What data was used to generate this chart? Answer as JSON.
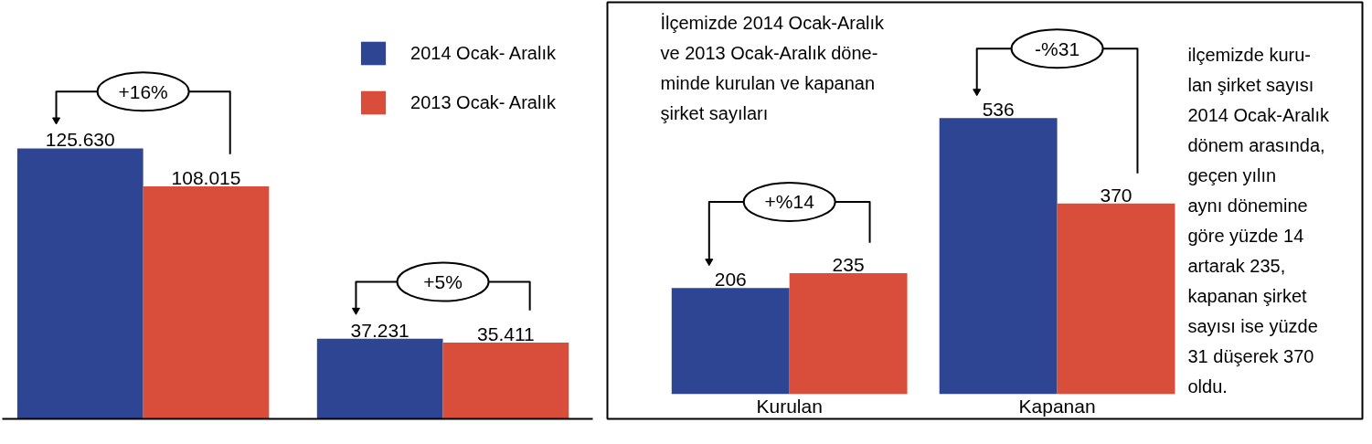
{
  "chart_data": [
    {
      "type": "bar",
      "categories": [
        null,
        null
      ],
      "series": [
        {
          "name": "2014 Ocak- Aralık",
          "color": "#2e4593",
          "values": [
            125630,
            37231
          ],
          "value_labels": [
            "125.630",
            "37.231"
          ]
        },
        {
          "name": "2013 Ocak- Aralık",
          "color": "#d84e3b",
          "values": [
            108015,
            35411
          ],
          "value_labels": [
            "108.015",
            "35.411"
          ]
        }
      ],
      "annotations": [
        "+16%",
        "+5%"
      ],
      "legend": "top right",
      "tick_labels": false
    },
    {
      "type": "bar",
      "categories": [
        "Kurulan",
        "Kapanan"
      ],
      "series": [
        {
          "color": "#2e4593",
          "values": [
            206,
            536
          ]
        },
        {
          "color": "#d84e3b",
          "values": [
            235,
            370
          ]
        }
      ],
      "data_labels": true,
      "tick_labels": "x",
      "annotations": [
        "+%14",
        "-%31",
        "İlçemizde 2014 Ocak-Aralık\nve 2013 Ocak-Aralık döne-\nminde kurulan ve kapanan\nşirket sayıları",
        "ilçemizde kuru-\nlan şirket sayısı\n2014 Ocak-Aralık\ndönem arasında,\ngeçen yılın\naynı dönemine\ngöre yüzde 14\nartarak 235,\nkapanan şirket\nsayısı ise yüzde\n31 düşerek 370\noldu."
      ]
    }
  ]
}
